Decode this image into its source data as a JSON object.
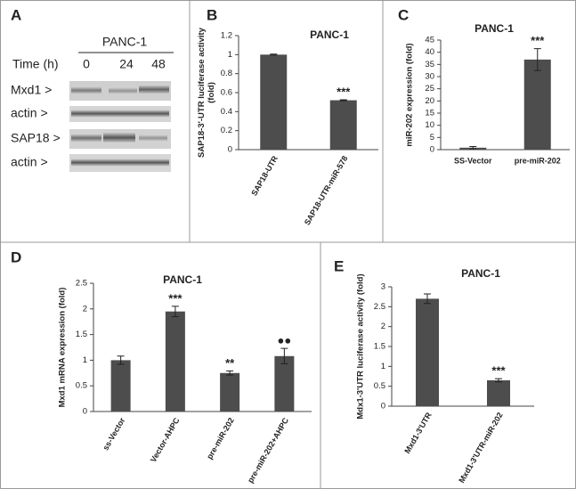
{
  "blot": {
    "panel": "A",
    "cell_line": "PANC-1",
    "time_label": "Time (h)",
    "times": [
      0,
      24,
      48
    ],
    "rows": [
      "Mxd1 >",
      "actin >",
      "SAP18 >",
      "actin >"
    ]
  },
  "chart_data": [
    {
      "type": "bar",
      "panel": "B",
      "title": "PANC-1",
      "ylabel": [
        "SAP18-3'-UTR luciferase activity",
        "(fold)"
      ],
      "categories": [
        "SAP18-UTR",
        "SAP18-UTR-miR-578"
      ],
      "values": [
        1.0,
        0.52
      ],
      "errors": [
        0.005,
        0.005
      ],
      "annotations": [
        null,
        "***"
      ],
      "color": "#4d4d4d",
      "x_label_rotated": true,
      "ylim": [
        0,
        1.2
      ],
      "yticks": [
        0,
        0.2,
        0.4,
        0.6,
        0.8,
        1,
        1.2
      ]
    },
    {
      "type": "bar",
      "panel": "C",
      "title": "PANC-1",
      "ylabel": [
        "miR-202 expression (fold)"
      ],
      "categories": [
        "SS-Vector",
        "pre-miR-202"
      ],
      "values": [
        0.8,
        37
      ],
      "errors": [
        0.5,
        4.5
      ],
      "annotations": [
        null,
        "***"
      ],
      "color": "#4d4d4d",
      "x_label_rotated": false,
      "ylim": [
        0,
        45
      ],
      "yticks": [
        0,
        5,
        10,
        15,
        20,
        25,
        30,
        35,
        40,
        45
      ]
    },
    {
      "type": "bar",
      "panel": "D",
      "title": "PANC-1",
      "ylabel": [
        "Mxd1 mRNA expression (fold)"
      ],
      "categories": [
        "ss-Vector",
        "Vector-AHPC",
        "pre-miR-202",
        "pre-miR-202+AHPC"
      ],
      "values": [
        1.0,
        1.95,
        0.75,
        1.08
      ],
      "errors": [
        0.08,
        0.1,
        0.04,
        0.15
      ],
      "annotations": [
        null,
        "***",
        "**",
        "●●"
      ],
      "color": "#4d4d4d",
      "x_label_rotated": true,
      "ylim": [
        0,
        2.5
      ],
      "yticks": [
        0,
        0.5,
        1,
        1.5,
        2,
        2.5
      ]
    },
    {
      "type": "bar",
      "panel": "E",
      "title": "PANC-1",
      "ylabel": [
        "Mdx1-3'UTR luciferase activity (fold)"
      ],
      "categories": [
        "Mxd1-3'UTR",
        "Mxd1-3'UTR-miR-202"
      ],
      "values": [
        2.7,
        0.65
      ],
      "errors": [
        0.12,
        0.04
      ],
      "annotations": [
        null,
        "***"
      ],
      "color": "#4d4d4d",
      "x_label_rotated": true,
      "ylim": [
        0,
        3
      ],
      "yticks": [
        0,
        0.5,
        1,
        1.5,
        2,
        2.5,
        3
      ]
    }
  ]
}
